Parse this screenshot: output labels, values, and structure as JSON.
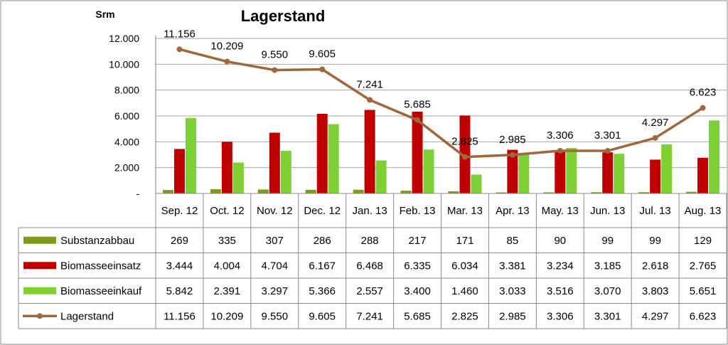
{
  "chart_data": {
    "type": "bar",
    "title": "Lagerstand",
    "ylabel": "Srm",
    "xlabel": "",
    "ylim": [
      0,
      12000
    ],
    "yticks": [
      0,
      2000,
      4000,
      6000,
      8000,
      10000,
      12000
    ],
    "ytick_labels": [
      "-",
      "2.000",
      "4.000",
      "6.000",
      "8.000",
      "10.000",
      "12.000"
    ],
    "grid": true,
    "legend": "data-table",
    "categories": [
      "Sep. 12",
      "Oct. 12",
      "Nov. 12",
      "Dec. 12",
      "Jan. 13",
      "Feb. 13",
      "Mar. 13",
      "Apr. 13",
      "May. 13",
      "Jun. 13",
      "Jul. 13",
      "Aug. 13"
    ],
    "series": [
      {
        "name": "Substanzabbau",
        "kind": "bar",
        "color": "#7F9A1A",
        "values": [
          269,
          335,
          307,
          286,
          288,
          217,
          171,
          85,
          90,
          99,
          99,
          129
        ],
        "labels": [
          "269",
          "335",
          "307",
          "286",
          "288",
          "217",
          "171",
          "85",
          "90",
          "99",
          "99",
          "129"
        ]
      },
      {
        "name": "Biomasseeinsatz",
        "kind": "bar",
        "color": "#C00000",
        "values": [
          3444,
          4004,
          4704,
          6167,
          6468,
          6335,
          6034,
          3381,
          3234,
          3185,
          2618,
          2765
        ],
        "labels": [
          "3.444",
          "4.004",
          "4.704",
          "6.167",
          "6.468",
          "6.335",
          "6.034",
          "3.381",
          "3.234",
          "3.185",
          "2.618",
          "2.765"
        ]
      },
      {
        "name": "Biomasseeinkauf",
        "kind": "bar",
        "color": "#7ED035",
        "values": [
          5842,
          2391,
          3297,
          5366,
          2557,
          3400,
          1460,
          3033,
          3516,
          3070,
          3803,
          5651
        ],
        "labels": [
          "5.842",
          "2.391",
          "3.297",
          "5.366",
          "2.557",
          "3.400",
          "1.460",
          "3.033",
          "3.516",
          "3.070",
          "3.803",
          "5.651"
        ]
      },
      {
        "name": "Lagerstand",
        "kind": "line",
        "color": "#A0673A",
        "values": [
          11156,
          10209,
          9550,
          9605,
          7241,
          5685,
          2825,
          2985,
          3306,
          3301,
          4297,
          6623
        ],
        "labels": [
          "11.156",
          "10.209",
          "9.550",
          "9.605",
          "7.241",
          "5.685",
          "2.825",
          "2.985",
          "3.306",
          "3.301",
          "4.297",
          "6.623"
        ]
      }
    ]
  }
}
